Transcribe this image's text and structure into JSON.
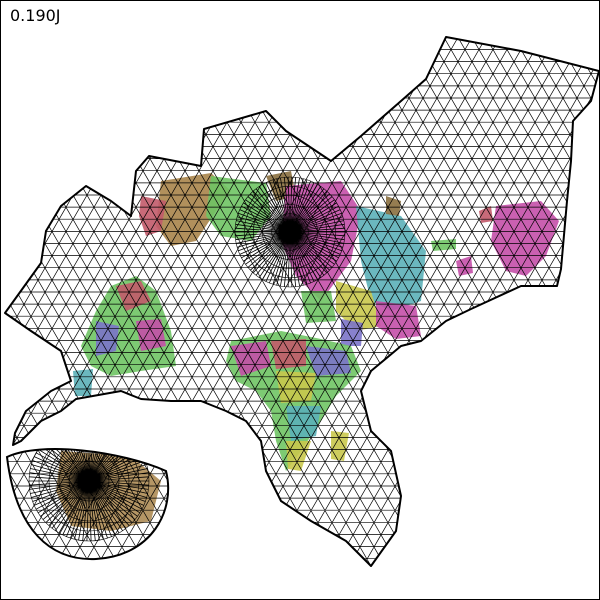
{
  "energy_label": "0.190J",
  "colors": {
    "mesh_line": "#000000",
    "outline": "#000000",
    "background": "#ffffff",
    "region_palette": [
      "#a8844a",
      "#6fc464",
      "#c44fa8",
      "#5bb0b8",
      "#7b73c9",
      "#c9c84c",
      "#c25a6a",
      "#5a8fcc",
      "#e0884a",
      "#8a6f3e"
    ]
  },
  "map": {
    "description_type": "deformed world-map mesh with two radial singularities",
    "singularities": 2
  }
}
